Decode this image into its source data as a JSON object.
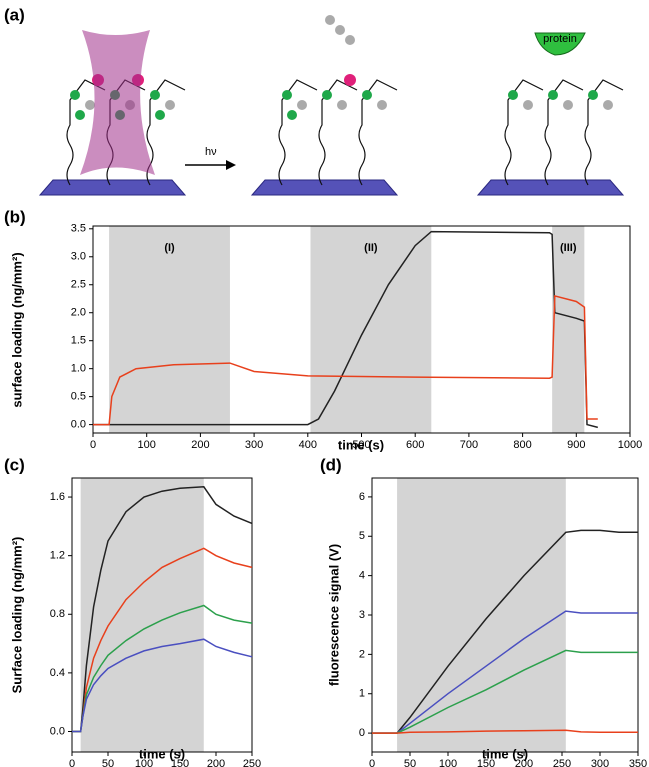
{
  "diagram": {
    "label": "(a)",
    "arrow_label": "hν",
    "protein_label": "protein"
  },
  "chart_data": [
    {
      "type": "line",
      "label": "(b)",
      "x_label": "time (s)",
      "y_label": "surface loading (ng/mm²)",
      "xlim": [
        0,
        1000
      ],
      "xticks": [
        0,
        100,
        200,
        300,
        400,
        500,
        600,
        700,
        800,
        900,
        1000
      ],
      "ylim": [
        -0.15,
        3.55
      ],
      "yticks": [
        {
          "value": 0,
          "label": "0.0"
        },
        {
          "value": 0.5,
          "label": "0.5"
        },
        {
          "value": 1,
          "label": "1.0"
        },
        {
          "value": 1.5,
          "label": "1.5"
        },
        {
          "value": 2,
          "label": "2.0"
        },
        {
          "value": 2.5,
          "label": "2.5"
        },
        {
          "value": 3,
          "label": "3.0"
        },
        {
          "value": 3.5,
          "label": "3.5"
        }
      ],
      "shaded": [
        {
          "label": "(I)",
          "range": [
            30,
            255
          ]
        },
        {
          "label": "(II)",
          "range": [
            405,
            630
          ]
        },
        {
          "label": "(III)",
          "range": [
            855,
            915
          ]
        }
      ],
      "series": [
        {
          "color": "#222222",
          "x": [
            0,
            400,
            420,
            450,
            500,
            550,
            600,
            630,
            850,
            855,
            860,
            900,
            915,
            920,
            940
          ],
          "values": [
            0,
            0,
            0.1,
            0.6,
            1.6,
            2.5,
            3.2,
            3.45,
            3.43,
            3.4,
            2.0,
            1.9,
            1.85,
            0,
            -0.05
          ]
        },
        {
          "color": "#e8401c",
          "x": [
            0,
            30,
            35,
            50,
            80,
            150,
            255,
            300,
            400,
            600,
            850,
            855,
            860,
            900,
            915,
            920,
            940
          ],
          "values": [
            0,
            0,
            0.5,
            0.85,
            1.0,
            1.07,
            1.1,
            0.95,
            0.87,
            0.85,
            0.83,
            0.85,
            2.3,
            2.2,
            2.1,
            0.1,
            0.1
          ]
        }
      ]
    },
    {
      "type": "line",
      "label": "(c)",
      "x_label": "time (s)",
      "y_label": "Surface loading (ng/mm²)",
      "xlim": [
        0,
        250
      ],
      "xticks": [
        0,
        50,
        100,
        150,
        200,
        250
      ],
      "ylim": [
        -0.14,
        1.73
      ],
      "yticks": [
        {
          "value": 0,
          "label": "0.0"
        },
        {
          "value": 0.4,
          "label": "0.4"
        },
        {
          "value": 0.8,
          "label": "0.8"
        },
        {
          "value": 1.2,
          "label": "1.2"
        },
        {
          "value": 1.6,
          "label": "1.6"
        }
      ],
      "shaded": [
        {
          "range": [
            12,
            183
          ]
        }
      ],
      "series": [
        {
          "color": "#222222",
          "x": [
            0,
            12,
            15,
            20,
            30,
            40,
            50,
            75,
            100,
            125,
            150,
            183,
            200,
            225,
            250
          ],
          "values": [
            0,
            0,
            0.15,
            0.45,
            0.85,
            1.1,
            1.3,
            1.5,
            1.6,
            1.64,
            1.66,
            1.67,
            1.55,
            1.47,
            1.42
          ]
        },
        {
          "color": "#e8401c",
          "x": [
            0,
            12,
            15,
            20,
            30,
            40,
            50,
            75,
            100,
            125,
            150,
            183,
            200,
            225,
            250
          ],
          "values": [
            0,
            0,
            0.1,
            0.3,
            0.5,
            0.62,
            0.72,
            0.9,
            1.02,
            1.12,
            1.18,
            1.25,
            1.2,
            1.15,
            1.12
          ]
        },
        {
          "color": "#2ca04c",
          "x": [
            0,
            12,
            15,
            20,
            30,
            40,
            50,
            75,
            100,
            125,
            150,
            183,
            200,
            225,
            250
          ],
          "values": [
            0,
            0,
            0.1,
            0.25,
            0.37,
            0.45,
            0.52,
            0.62,
            0.7,
            0.76,
            0.81,
            0.86,
            0.8,
            0.76,
            0.74
          ]
        },
        {
          "color": "#4a4fc0",
          "x": [
            0,
            12,
            15,
            20,
            30,
            40,
            50,
            75,
            100,
            125,
            150,
            183,
            200,
            225,
            250
          ],
          "values": [
            0,
            0,
            0.1,
            0.22,
            0.32,
            0.38,
            0.43,
            0.5,
            0.55,
            0.58,
            0.6,
            0.63,
            0.58,
            0.54,
            0.51
          ]
        }
      ]
    },
    {
      "type": "line",
      "label": "(d)",
      "x_label": "time (s)",
      "y_label": "fluorescence signal (V)",
      "xlim": [
        0,
        350
      ],
      "xticks": [
        0,
        50,
        100,
        150,
        200,
        250,
        300,
        350
      ],
      "ylim": [
        -0.48,
        6.48
      ],
      "yticks": [
        0,
        1,
        2,
        3,
        4,
        5,
        6
      ],
      "shaded": [
        {
          "range": [
            33,
            255
          ]
        }
      ],
      "series": [
        {
          "color": "#222222",
          "x": [
            0,
            33,
            50,
            100,
            150,
            200,
            255,
            275,
            300,
            325,
            350
          ],
          "values": [
            0,
            0,
            0.4,
            1.7,
            2.9,
            4.0,
            5.1,
            5.15,
            5.15,
            5.1,
            5.1
          ]
        },
        {
          "color": "#4a4fc0",
          "x": [
            0,
            33,
            50,
            100,
            150,
            200,
            255,
            275,
            300,
            325,
            350
          ],
          "values": [
            0,
            0,
            0.25,
            1.0,
            1.7,
            2.4,
            3.1,
            3.05,
            3.05,
            3.05,
            3.05
          ]
        },
        {
          "color": "#2ca04c",
          "x": [
            0,
            33,
            50,
            100,
            150,
            200,
            255,
            275,
            300,
            325,
            350
          ],
          "values": [
            0,
            0,
            0.15,
            0.65,
            1.1,
            1.6,
            2.1,
            2.05,
            2.05,
            2.05,
            2.05
          ]
        },
        {
          "color": "#e8401c",
          "x": [
            0,
            33,
            50,
            100,
            150,
            200,
            255,
            275,
            300,
            325,
            350
          ],
          "values": [
            0,
            0,
            0.02,
            0.03,
            0.05,
            0.06,
            0.07,
            0.03,
            0.02,
            0.02,
            0.02
          ]
        }
      ]
    }
  ]
}
